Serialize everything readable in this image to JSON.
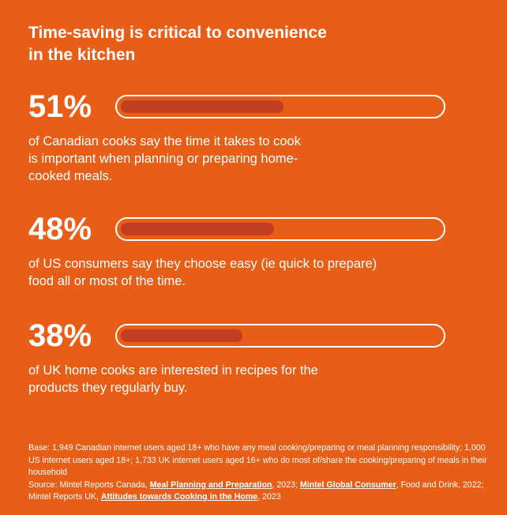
{
  "header": {
    "title_line1": "Time-saving is critical to convenience",
    "title_line2": "in the kitchen"
  },
  "stats": [
    {
      "percent_label": "51%",
      "value": 51,
      "desc_lines": [
        "of Canadian cooks say the time it takes to cook",
        "is important when planning or preparing home-",
        "cooked meals."
      ]
    },
    {
      "percent_label": "48%",
      "value": 48,
      "desc_lines": [
        "of US consumers say they choose easy (ie quick to prepare)",
        "food all or most of the time."
      ]
    },
    {
      "percent_label": "38%",
      "value": 38,
      "desc_lines": [
        "of UK home cooks are interested in recipes for the",
        "products they regularly buy."
      ]
    }
  ],
  "footer": {
    "base_text": "Base: 1,949 Canadian internet users aged 18+ who have any meal cooking/preparing or meal planning responsibility; 1,000 US internet users aged 18+; 1,733 UK internet users aged 16+ who do most of/share the cooking/preparing of meals in their household",
    "source_prefix": "Source: Mintel Reports Canada, ",
    "link1": "Meal Planning and Preparation",
    "text2": ", 2023; ",
    "link2": "Mintel Global Consumer",
    "text3": ", Food and Drink, 2022; Mintel Reports UK, ",
    "link3": "Attitudes towards Cooking in the Home",
    "text4": ", 2023"
  },
  "colors": {
    "background": "#E85E17",
    "bar_fill": "#C23E22",
    "text": "#FFFFFF"
  }
}
